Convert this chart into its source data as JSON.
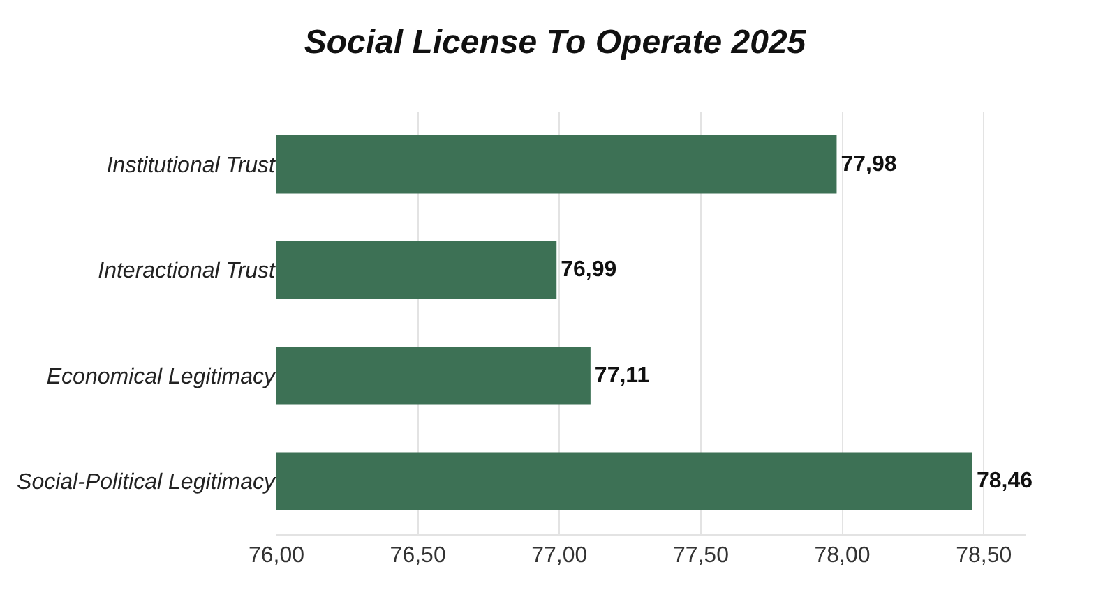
{
  "chart_data": {
    "type": "bar",
    "orientation": "horizontal",
    "title": "Social License To Operate 2025",
    "categories": [
      "Institutional Trust",
      "Interactional Trust",
      "Economical Legitimacy",
      "Social-Political Legitimacy"
    ],
    "values": [
      77.98,
      76.99,
      77.11,
      78.46
    ],
    "value_labels": [
      "77,98",
      "76,99",
      "77,11",
      "78,46"
    ],
    "color": "#3d7155",
    "xlim": [
      76,
      78.65
    ],
    "xticks": [
      {
        "value": 76,
        "label": "76,00"
      },
      {
        "value": 76.5,
        "label": "76,50"
      },
      {
        "value": 77,
        "label": "77,00"
      },
      {
        "value": 77.5,
        "label": "77,50"
      },
      {
        "value": 78,
        "label": "78,00"
      },
      {
        "value": 78.5,
        "label": "78,50"
      }
    ],
    "grid": "x",
    "legend": false
  }
}
